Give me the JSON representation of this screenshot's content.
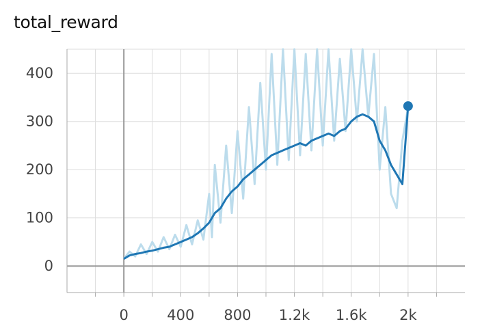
{
  "chart_data": {
    "type": "line",
    "title": "total_reward",
    "xlim": [
      -400,
      2400
    ],
    "ylim": [
      -55,
      450
    ],
    "grid": true,
    "x_ticks": [
      {
        "value": 0,
        "label": "0"
      },
      {
        "value": 400,
        "label": "400"
      },
      {
        "value": 800,
        "label": "800"
      },
      {
        "value": 1200,
        "label": "1.2k"
      },
      {
        "value": 1600,
        "label": "1.6k"
      },
      {
        "value": 2000,
        "label": "2k"
      }
    ],
    "y_ticks": [
      {
        "value": 0,
        "label": "0"
      },
      {
        "value": 100,
        "label": "100"
      },
      {
        "value": 200,
        "label": "200"
      },
      {
        "value": 300,
        "label": "300"
      },
      {
        "value": 400,
        "label": "400"
      }
    ],
    "colors": {
      "smoothed": "#1f77b4",
      "raw": "#bcdcec",
      "axis": "#999999",
      "grid": "#dddddd"
    },
    "series": [
      {
        "role": "raw",
        "x": [
          0,
          40,
          80,
          120,
          160,
          200,
          240,
          280,
          320,
          360,
          400,
          440,
          480,
          520,
          560,
          600,
          620,
          640,
          680,
          720,
          760,
          800,
          840,
          880,
          920,
          960,
          1000,
          1040,
          1080,
          1120,
          1160,
          1200,
          1240,
          1280,
          1320,
          1360,
          1400,
          1440,
          1480,
          1520,
          1560,
          1600,
          1640,
          1680,
          1720,
          1760,
          1800,
          1840,
          1880,
          1920,
          1960,
          2000
        ],
        "y": [
          15,
          30,
          20,
          45,
          25,
          50,
          30,
          60,
          35,
          65,
          40,
          85,
          45,
          95,
          55,
          150,
          60,
          210,
          90,
          250,
          110,
          280,
          140,
          330,
          170,
          380,
          200,
          440,
          210,
          450,
          220,
          450,
          230,
          440,
          240,
          450,
          250,
          450,
          260,
          430,
          280,
          450,
          300,
          450,
          310,
          440,
          200,
          330,
          150,
          120,
          260,
          330
        ]
      },
      {
        "role": "smoothed",
        "x": [
          0,
          40,
          80,
          120,
          160,
          200,
          240,
          280,
          320,
          360,
          400,
          440,
          480,
          520,
          560,
          600,
          640,
          680,
          720,
          760,
          800,
          840,
          880,
          920,
          960,
          1000,
          1040,
          1080,
          1120,
          1160,
          1200,
          1240,
          1280,
          1320,
          1360,
          1400,
          1440,
          1480,
          1520,
          1560,
          1600,
          1640,
          1680,
          1720,
          1760,
          1800,
          1840,
          1880,
          1920,
          1960,
          2000
        ],
        "y": [
          15,
          22,
          25,
          27,
          30,
          32,
          35,
          38,
          40,
          45,
          50,
          55,
          60,
          68,
          78,
          90,
          110,
          120,
          140,
          155,
          165,
          180,
          190,
          200,
          210,
          220,
          230,
          235,
          240,
          245,
          250,
          255,
          250,
          260,
          265,
          270,
          275,
          270,
          280,
          285,
          300,
          310,
          315,
          310,
          300,
          260,
          240,
          210,
          190,
          170,
          332
        ]
      }
    ],
    "last_point": {
      "x": 2000,
      "y": 332
    }
  }
}
